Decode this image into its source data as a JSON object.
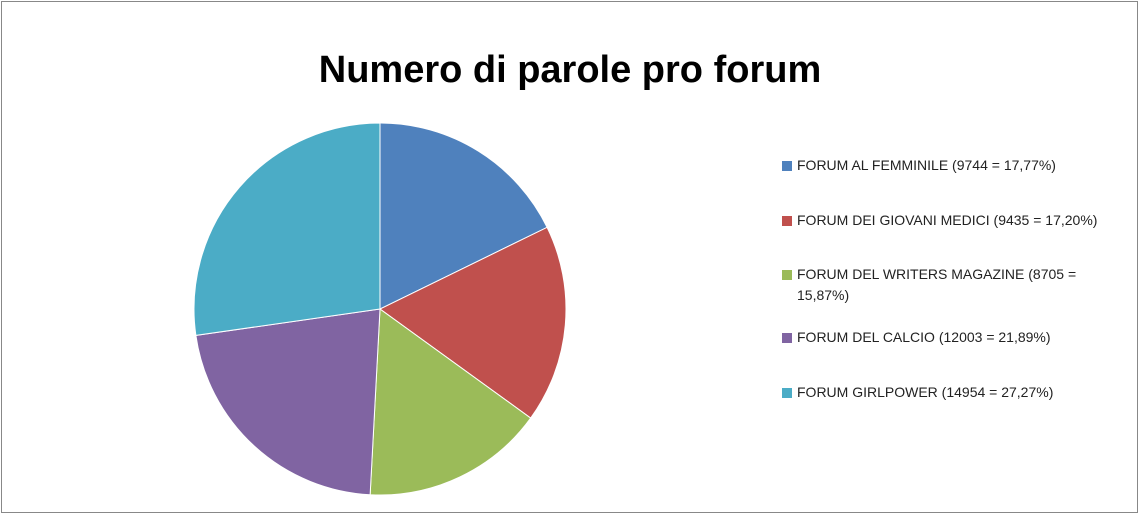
{
  "chart_data": {
    "type": "pie",
    "title": "Numero di parole pro forum",
    "categories": [
      "FORUM AL FEMMINILE (9744 = 17,77%)",
      "FORUM DEI GIOVANI MEDICI (9435 = 17,20%)",
      "FORUM DEL WRITERS MAGAZINE (8705 = 15,87%)",
      "FORUM DEL CALCIO (12003 = 21,89%)",
      "FORUM GIRLPOWER (14954 = 27,27%)"
    ],
    "values": [
      9744,
      9435,
      8705,
      12003,
      14954
    ],
    "colors": [
      "#4f81bd",
      "#c0504d",
      "#9bbb59",
      "#8064a2",
      "#4bacc6"
    ],
    "legend": "right"
  }
}
